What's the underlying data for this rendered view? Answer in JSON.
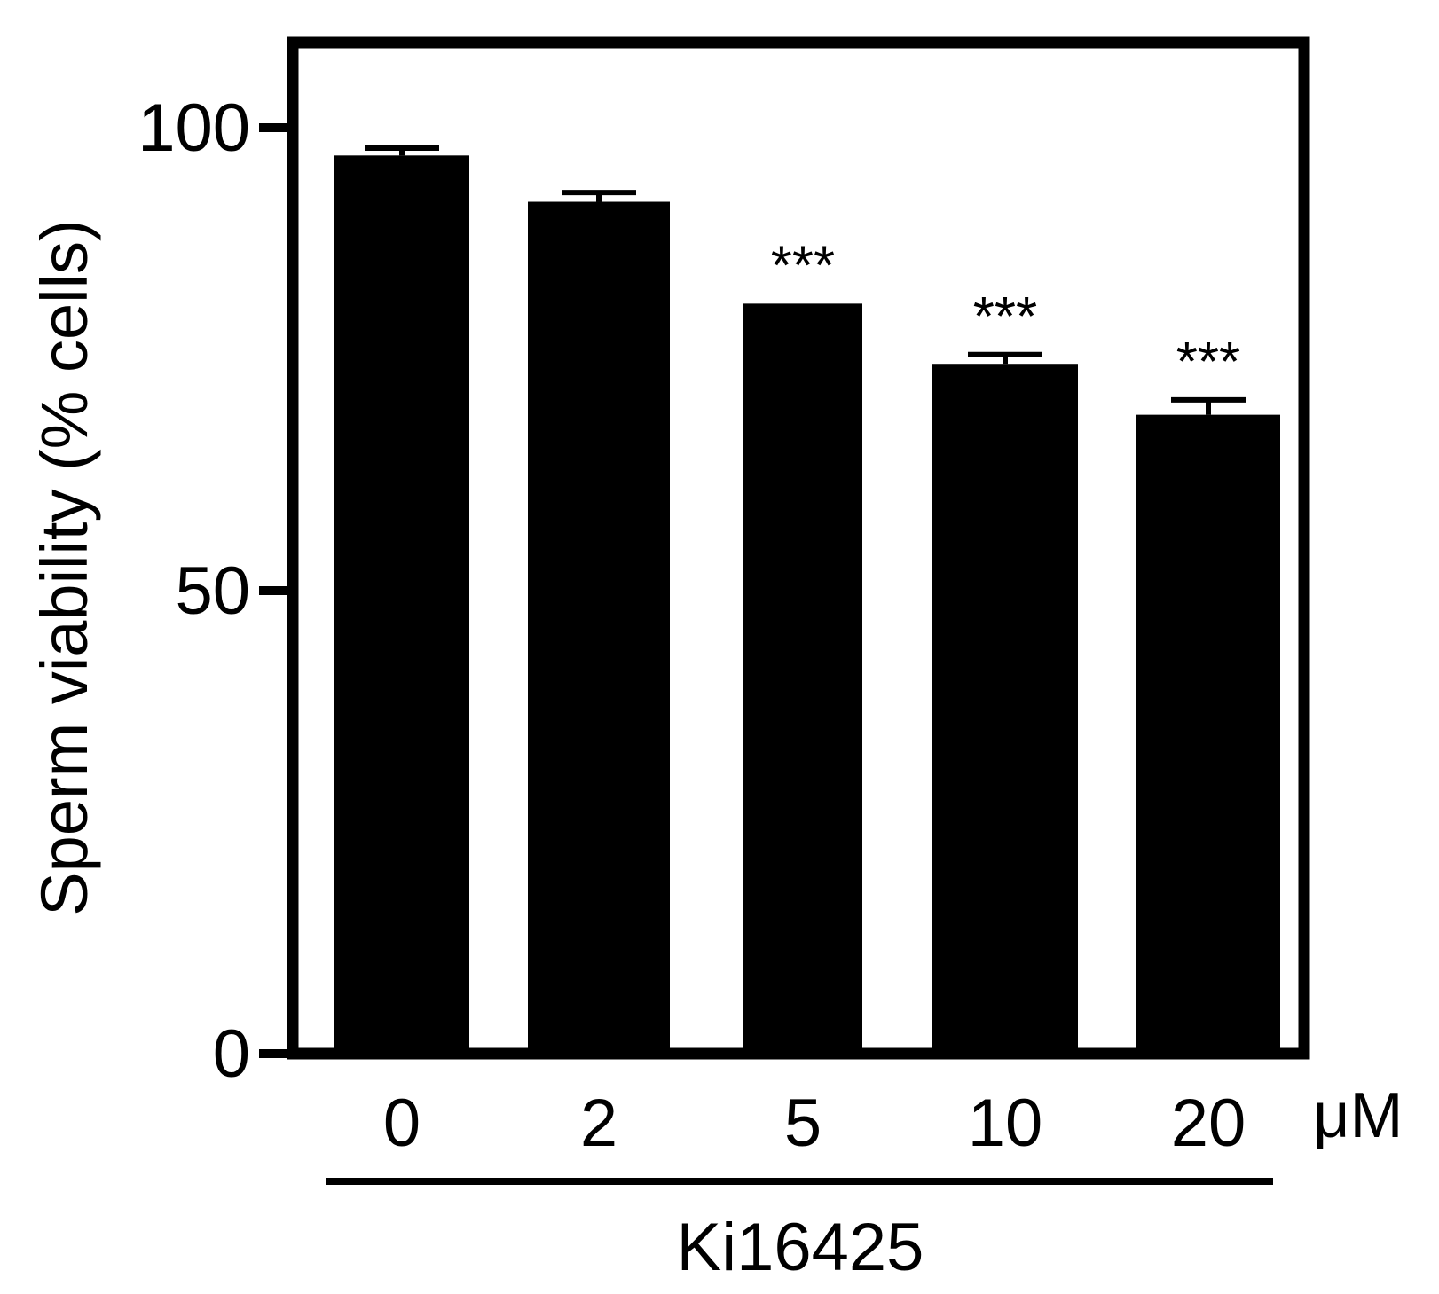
{
  "chart_data": {
    "type": "bar",
    "categories": [
      "0",
      "2",
      "5",
      "10",
      "20"
    ],
    "values": [
      97,
      92,
      81,
      74.5,
      69
    ],
    "errors": [
      0.8,
      1.0,
      0,
      1.0,
      1.6
    ],
    "significance": [
      "",
      "",
      "***",
      "***",
      "***"
    ],
    "ylabel": "Sperm viability (% cells)",
    "yticks": [
      0,
      50,
      100
    ],
    "ylim": [
      0,
      110
    ],
    "unit_label": "μM",
    "group_label": "Ki16425",
    "grid": false,
    "legend": "none",
    "colors": {
      "bar": "#000000",
      "axis": "#000000",
      "background": "#ffffff"
    }
  }
}
